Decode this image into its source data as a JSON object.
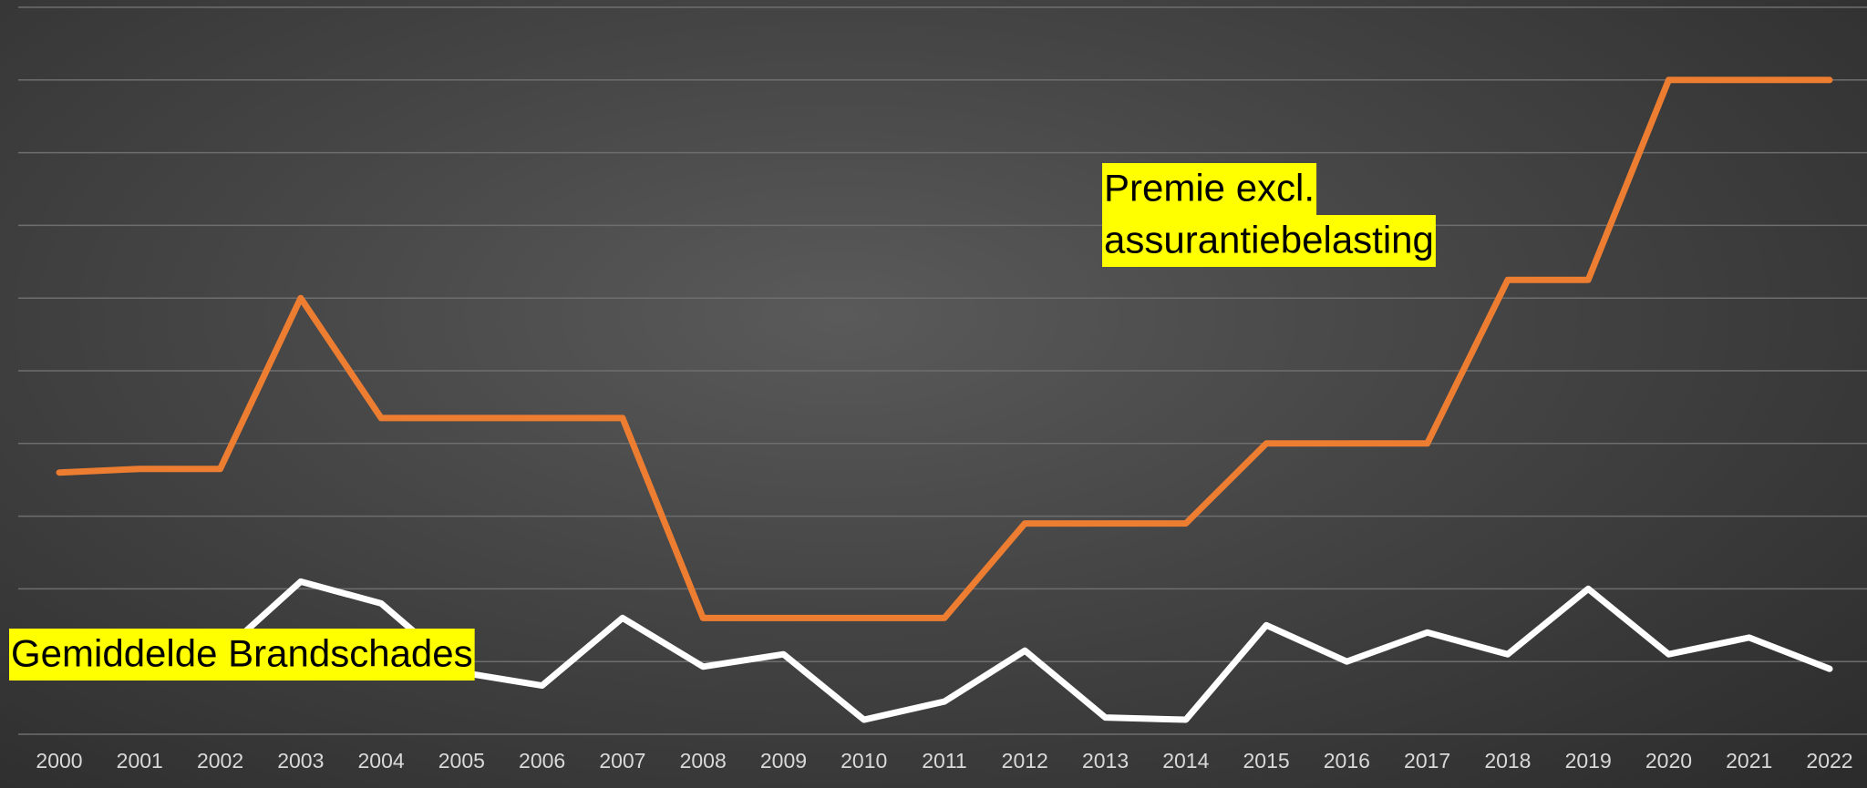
{
  "chart_data": {
    "type": "line",
    "categories": [
      "2000",
      "2001",
      "2002",
      "2003",
      "2004",
      "2005",
      "2006",
      "2007",
      "2008",
      "2009",
      "2010",
      "2011",
      "2012",
      "2013",
      "2014",
      "2015",
      "2016",
      "2017",
      "2018",
      "2019",
      "2020",
      "2021",
      "2022"
    ],
    "series": [
      {
        "color": "#ed7d31",
        "values": [
          3.6,
          3.65,
          3.65,
          6.0,
          4.35,
          4.35,
          4.35,
          4.35,
          1.6,
          1.6,
          1.6,
          1.6,
          2.9,
          2.9,
          2.9,
          4.0,
          4.0,
          4.0,
          6.25,
          6.25,
          9.0,
          9.0,
          9.0
        ]
      },
      {
        "color": "#ffffff",
        "values": [
          1.0,
          1.1,
          1.1,
          2.1,
          1.8,
          0.85,
          0.67,
          1.6,
          0.93,
          1.1,
          0.2,
          0.45,
          1.15,
          0.23,
          0.2,
          1.5,
          1.0,
          1.4,
          1.1,
          2.0,
          1.1,
          1.33,
          0.9
        ]
      }
    ],
    "ylim": [
      0,
      10
    ],
    "yticks": [
      0,
      1,
      2,
      3,
      4,
      5,
      6,
      7,
      8,
      9,
      10
    ],
    "grid": true,
    "annotations": [
      {
        "lines": [
          "Premie excl.",
          "assurantiebelasting"
        ]
      },
      {
        "lines": [
          "Gemiddelde Brandschades"
        ]
      }
    ]
  }
}
